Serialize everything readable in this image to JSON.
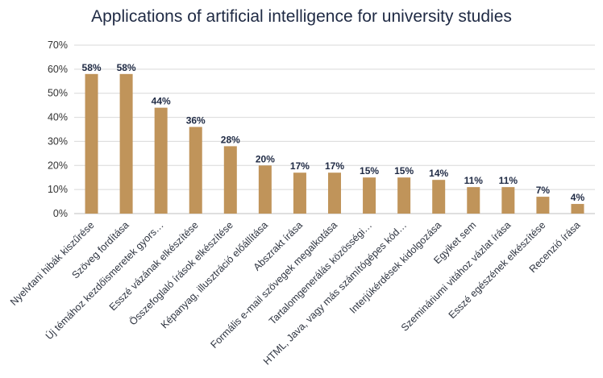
{
  "chart_data": {
    "type": "bar",
    "title": "Applications of artificial intelligence for university studies",
    "categories": [
      "Nyelvtani hibák kiszűrése",
      "Szöveg fordítása",
      "Új témához kezdőismeretek gyors…",
      "Esszé vázának elkészítése",
      "Összefoglaló írások elkészítése",
      "Képanyag, illusztráció előállítása",
      "Abszrakt írása",
      "Formális e-mail szövegek megalkotása",
      "Tartalomgenerálás közösségi…",
      "HTML, Java, vagy más számítógépes kód…",
      "Interjúkérdések kidolgozása",
      "Egyiket sem",
      "Szemináriumi vitához vázlat írása",
      "Esszé egészének elkészítése",
      "Recenzió írása"
    ],
    "values": [
      58,
      58,
      44,
      36,
      28,
      20,
      17,
      17,
      15,
      15,
      14,
      11,
      11,
      7,
      4
    ],
    "data_labels": [
      "58%",
      "58%",
      "44%",
      "36%",
      "28%",
      "20%",
      "17%",
      "17%",
      "15%",
      "15%",
      "14%",
      "11%",
      "11%",
      "7%",
      "4%"
    ],
    "ylim": [
      0,
      70
    ],
    "yticks": [
      "0%",
      "10%",
      "20%",
      "30%",
      "40%",
      "50%",
      "60%",
      "70%"
    ],
    "xlabel": "",
    "ylabel": "",
    "grid": true,
    "legend": "none",
    "bar_color": "#c0945a"
  }
}
